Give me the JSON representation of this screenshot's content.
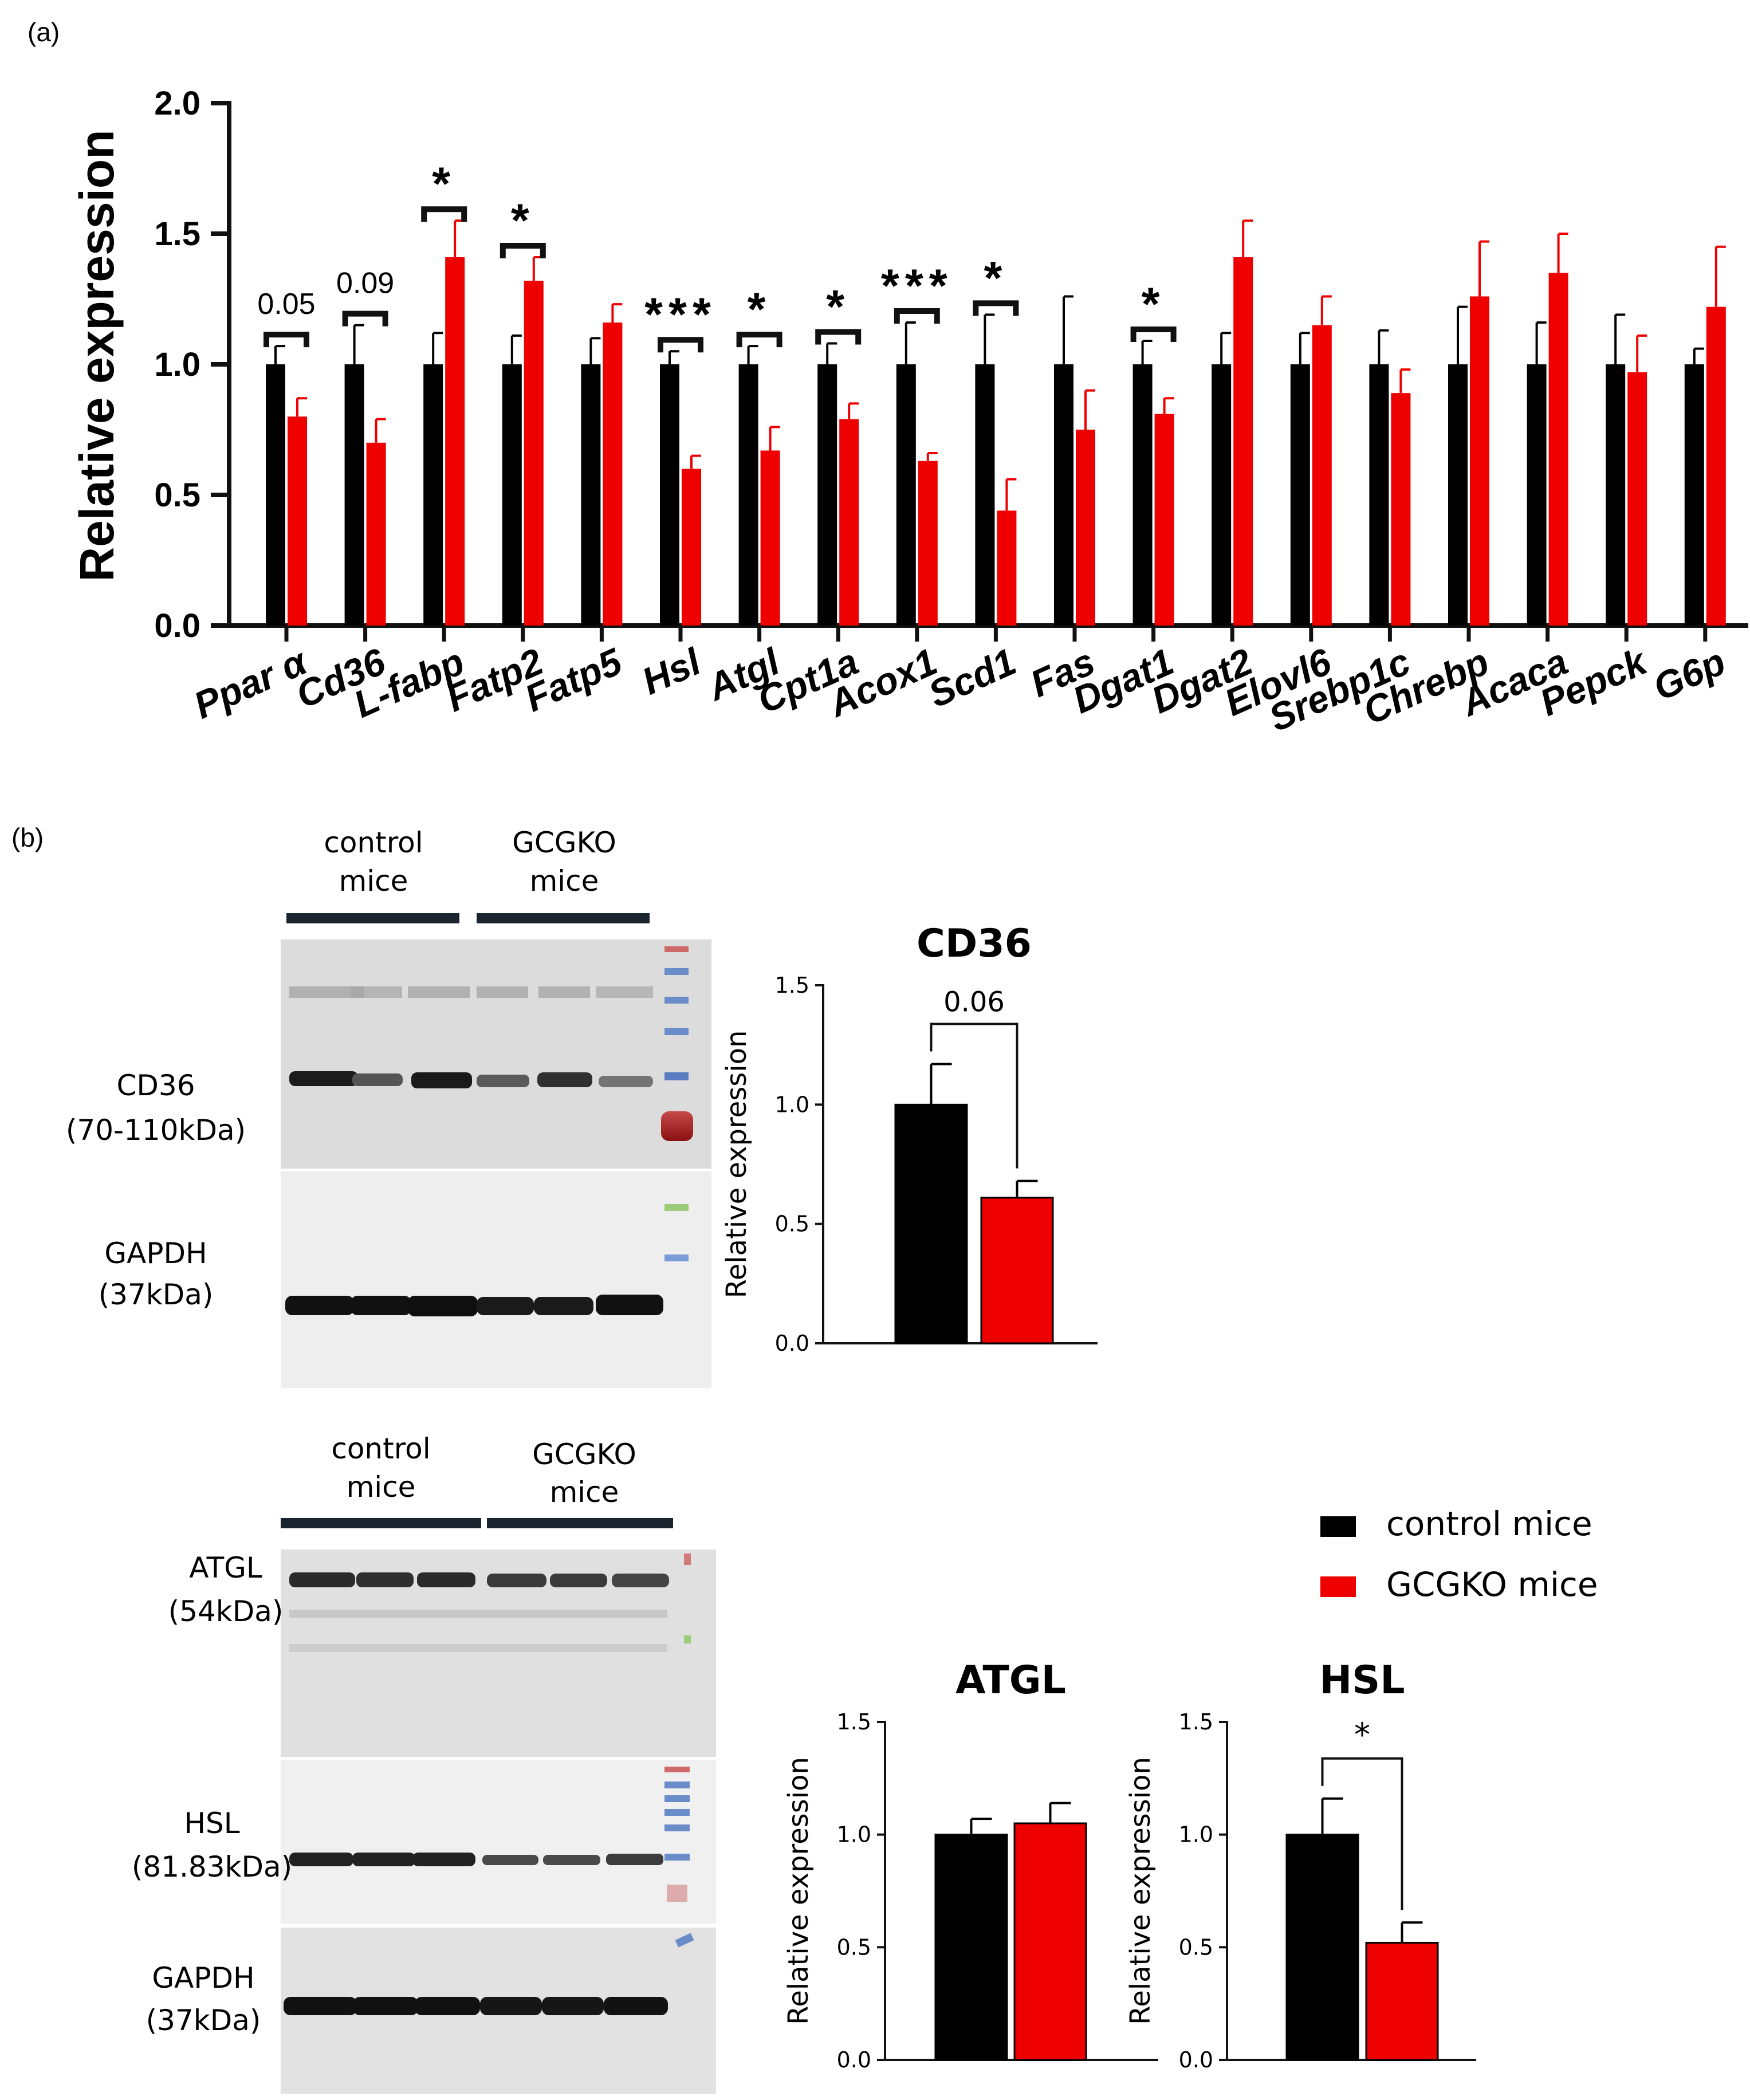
{
  "panels": {
    "a": "(a)",
    "b": "(b)"
  },
  "colors": {
    "control": "#000000",
    "gcgko": "#ee0000",
    "axis": "#111111"
  },
  "legend": {
    "control": "control mice",
    "gcgko": "GCGKO mice"
  },
  "blots": {
    "top": {
      "group_control": [
        "control",
        "mice"
      ],
      "group_gcgko": [
        "GCGKO",
        "mice"
      ],
      "cd36_label": [
        "CD36",
        "(70-110kDa)"
      ],
      "gapdh_label": [
        "GAPDH",
        "(37kDa)"
      ]
    },
    "bottom": {
      "group_control": [
        "control",
        "mice"
      ],
      "group_gcgko": [
        "GCGKO",
        "mice"
      ],
      "atgl_label": [
        "ATGL",
        "(54kDa)"
      ],
      "hsl_label": [
        "HSL",
        "(81.83kDa)"
      ],
      "gapdh_label": [
        "GAPDH",
        "(37kDa)"
      ]
    }
  },
  "chart_data": [
    {
      "id": "a",
      "type": "bar",
      "title": "",
      "xlabel": "",
      "ylabel": "Relative expression",
      "ylim": [
        0,
        2.0
      ],
      "yticks": [
        "0.0",
        "0.5",
        "1.0",
        "1.5",
        "2.0"
      ],
      "categories": [
        "Ppar α",
        "Cd36",
        "L-fabp",
        "Fatp2",
        "Fatp5",
        "Hsl",
        "Atgl",
        "Cpt1a",
        "Acox1",
        "Scd1",
        "Fas",
        "Dgat1",
        "Dgat2",
        "Elovl6",
        "Srebp1c",
        "Chrebp",
        "Acaca",
        "Pepck",
        "G6p"
      ],
      "series": [
        {
          "name": "control mice",
          "values": [
            1.0,
            1.0,
            1.0,
            1.0,
            1.0,
            1.0,
            1.0,
            1.0,
            1.0,
            1.0,
            1.0,
            1.0,
            1.0,
            1.0,
            1.0,
            1.0,
            1.0,
            1.0,
            1.0
          ],
          "errors": [
            0.07,
            0.15,
            0.12,
            0.11,
            0.1,
            0.05,
            0.07,
            0.08,
            0.16,
            0.19,
            0.26,
            0.09,
            0.12,
            0.12,
            0.13,
            0.22,
            0.16,
            0.19,
            0.06
          ]
        },
        {
          "name": "GCGKO mice",
          "values": [
            0.8,
            0.7,
            1.41,
            1.32,
            1.16,
            0.6,
            0.67,
            0.79,
            0.63,
            0.44,
            0.75,
            0.81,
            1.41,
            1.15,
            0.89,
            1.26,
            1.35,
            0.97,
            1.22
          ],
          "errors": [
            0.07,
            0.09,
            0.14,
            0.09,
            0.07,
            0.05,
            0.09,
            0.06,
            0.03,
            0.12,
            0.15,
            0.06,
            0.14,
            0.11,
            0.09,
            0.21,
            0.15,
            0.14,
            0.23
          ]
        }
      ],
      "annotations": [
        "0.05",
        "0.09",
        "*",
        "*",
        "",
        "***",
        "*",
        "*",
        "***",
        "*",
        "",
        "*",
        "",
        "",
        "",
        "",
        "",
        "",
        ""
      ]
    },
    {
      "id": "cd36",
      "type": "bar",
      "title": "CD36",
      "ylabel": "Relative expression",
      "ylim": [
        0,
        1.5
      ],
      "yticks": [
        "0.0",
        "0.5",
        "1.0",
        "1.5"
      ],
      "categories": [
        "control mice",
        "GCGKO mice"
      ],
      "values": [
        1.0,
        0.61
      ],
      "errors": [
        0.17,
        0.07
      ],
      "annotation": "0.06"
    },
    {
      "id": "atgl",
      "type": "bar",
      "title": "ATGL",
      "ylabel": "Relative expression",
      "ylim": [
        0,
        1.5
      ],
      "yticks": [
        "0.0",
        "0.5",
        "1.0",
        "1.5"
      ],
      "categories": [
        "control mice",
        "GCGKO mice"
      ],
      "values": [
        1.0,
        1.05
      ],
      "errors": [
        0.07,
        0.09
      ],
      "annotation": ""
    },
    {
      "id": "hsl",
      "type": "bar",
      "title": "HSL",
      "ylabel": "Relative expression",
      "ylim": [
        0,
        1.5
      ],
      "yticks": [
        "0.0",
        "0.5",
        "1.0",
        "1.5"
      ],
      "categories": [
        "control mice",
        "GCGKO mice"
      ],
      "values": [
        1.0,
        0.52
      ],
      "errors": [
        0.16,
        0.09
      ],
      "annotation": "*"
    }
  ]
}
